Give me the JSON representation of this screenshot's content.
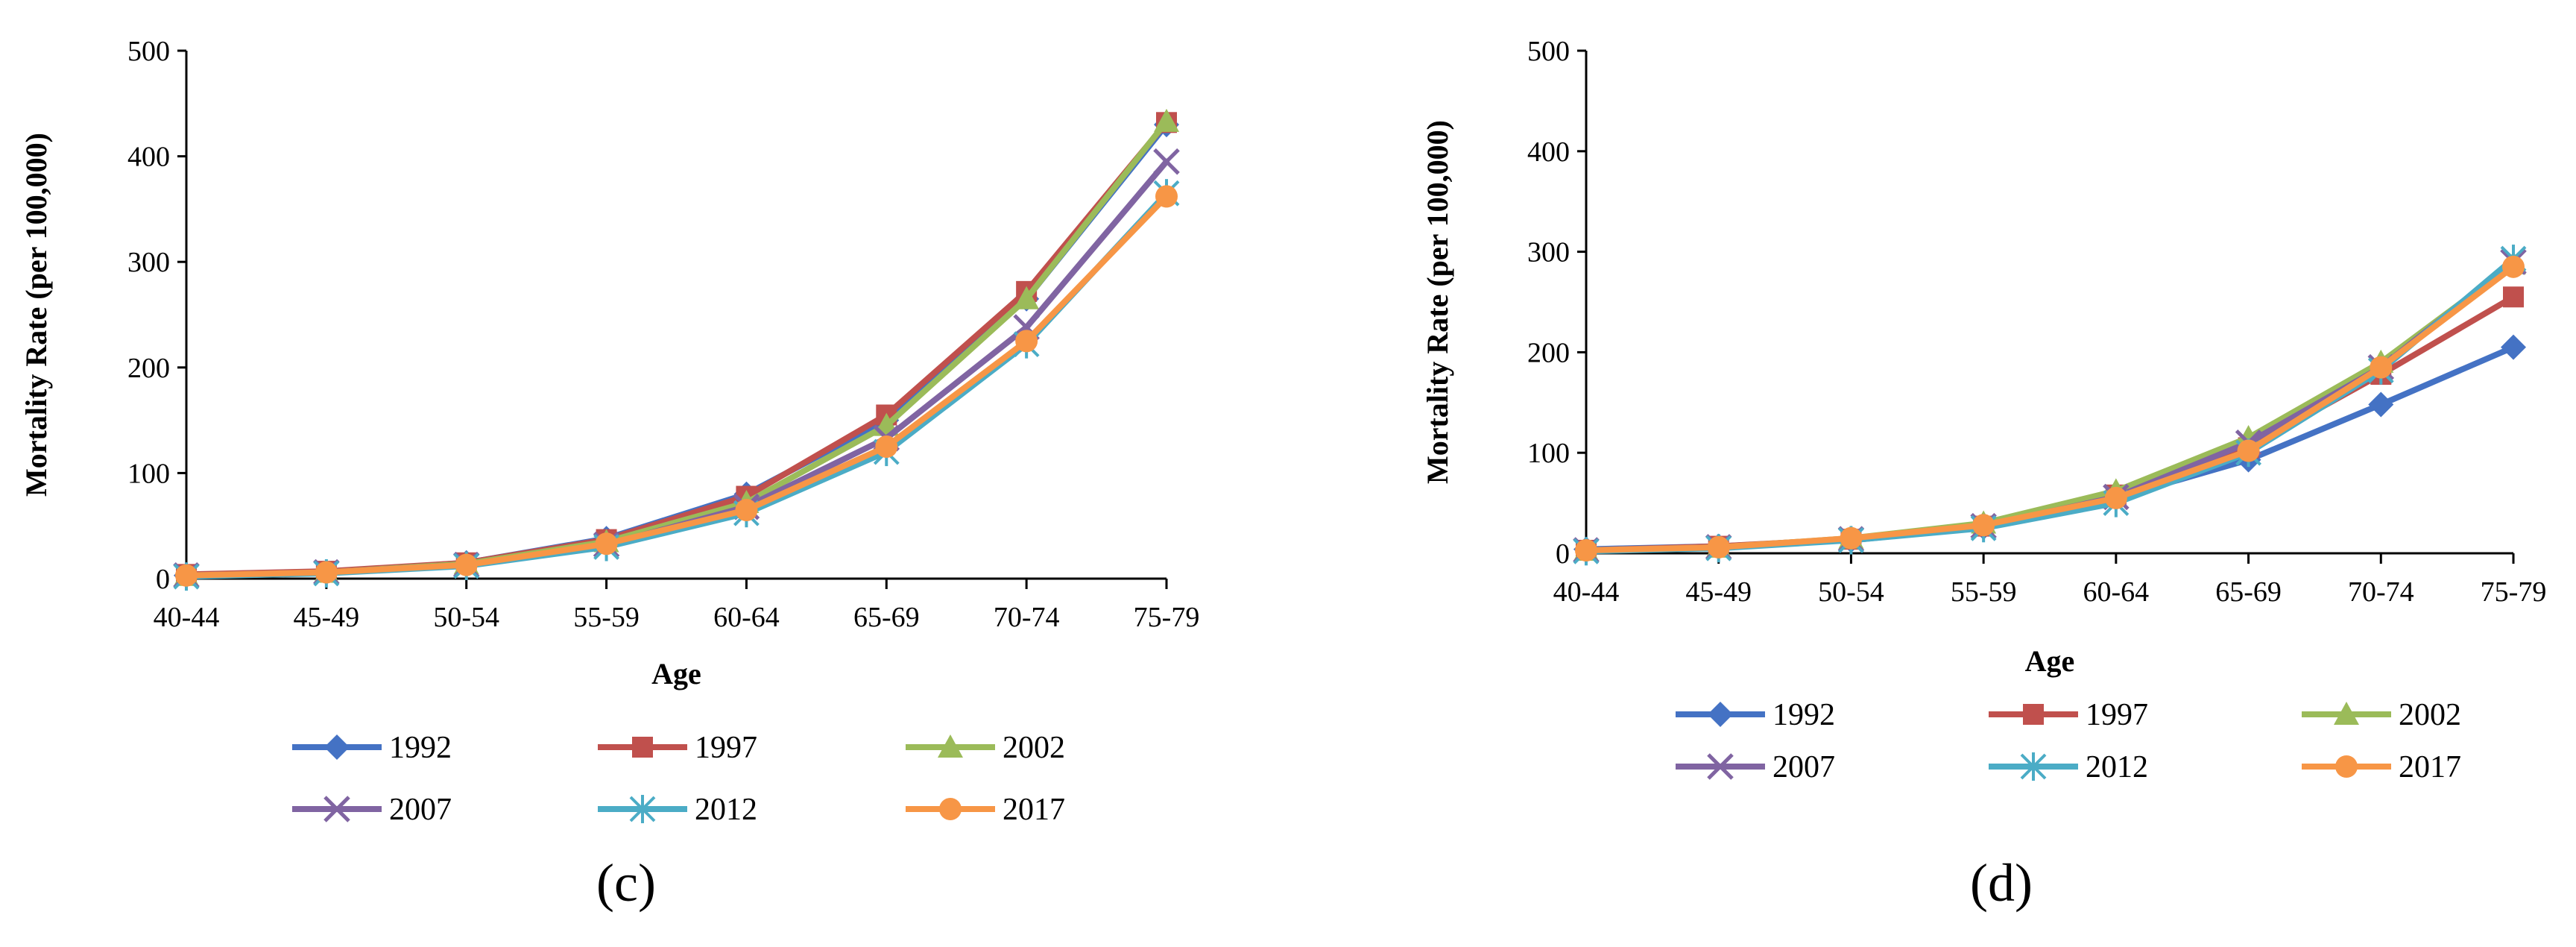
{
  "chart_data": [
    {
      "type": "line",
      "panel_label": "(c)",
      "categories": [
        "40-44",
        "45-49",
        "50-54",
        "55-59",
        "60-64",
        "65-69",
        "70-74",
        "75-79"
      ],
      "xlabel": "Age",
      "ylabel": "Mortality  Rate  (per  100,000)",
      "ylim": [
        0,
        500
      ],
      "yticks": [
        "0",
        "100",
        "200",
        "300",
        "400",
        "500"
      ],
      "grid": false,
      "legend_position": "bottom",
      "series": [
        {
          "name": "1992",
          "color": "#4472C4",
          "marker": "diamond",
          "values": [
            3,
            6,
            15,
            38,
            80,
            150,
            265,
            430
          ]
        },
        {
          "name": "1997",
          "color": "#C0504D",
          "marker": "square",
          "values": [
            4,
            7,
            15,
            37,
            78,
            155,
            272,
            432
          ]
        },
        {
          "name": "2002",
          "color": "#9BBB59",
          "marker": "triangle",
          "values": [
            3,
            6,
            14,
            35,
            72,
            145,
            265,
            433
          ]
        },
        {
          "name": "2007",
          "color": "#8064A2",
          "marker": "x",
          "values": [
            3,
            6,
            13,
            32,
            68,
            133,
            238,
            395
          ]
        },
        {
          "name": "2012",
          "color": "#4BACC6",
          "marker": "asterisk",
          "values": [
            2,
            5,
            12,
            30,
            62,
            120,
            222,
            365
          ]
        },
        {
          "name": "2017",
          "color": "#F79646",
          "marker": "circle",
          "values": [
            3,
            6,
            13,
            33,
            65,
            125,
            225,
            362
          ]
        }
      ]
    },
    {
      "type": "line",
      "panel_label": "(d)",
      "categories": [
        "40-44",
        "45-49",
        "50-54",
        "55-59",
        "60-64",
        "65-69",
        "70-74",
        "75-79"
      ],
      "xlabel": "Age",
      "ylabel": "Mortality  Rate  (per  100,000)",
      "ylim": [
        0,
        500
      ],
      "yticks": [
        "0",
        "100",
        "200",
        "300",
        "400",
        "500"
      ],
      "grid": false,
      "legend_position": "bottom",
      "series": [
        {
          "name": "1992",
          "color": "#4472C4",
          "marker": "diamond",
          "values": [
            4,
            7,
            13,
            26,
            55,
            93,
            148,
            205
          ]
        },
        {
          "name": "1997",
          "color": "#C0504D",
          "marker": "square",
          "values": [
            3,
            7,
            14,
            27,
            58,
            105,
            178,
            255
          ]
        },
        {
          "name": "2002",
          "color": "#9BBB59",
          "marker": "triangle",
          "values": [
            3,
            6,
            15,
            30,
            62,
            115,
            190,
            288
          ]
        },
        {
          "name": "2007",
          "color": "#8064A2",
          "marker": "x",
          "values": [
            3,
            6,
            14,
            27,
            56,
            110,
            185,
            290
          ]
        },
        {
          "name": "2012",
          "color": "#4BACC6",
          "marker": "asterisk",
          "values": [
            2,
            5,
            13,
            25,
            50,
            100,
            182,
            293
          ]
        },
        {
          "name": "2017",
          "color": "#F79646",
          "marker": "circle",
          "values": [
            3,
            6,
            15,
            28,
            55,
            102,
            185,
            285
          ]
        }
      ]
    }
  ]
}
